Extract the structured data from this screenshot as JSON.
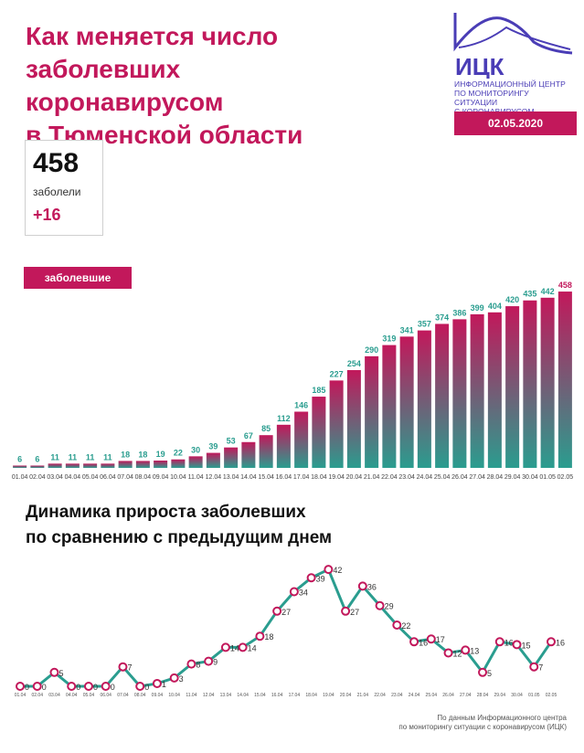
{
  "header": {
    "title_lines": [
      "Как меняется число",
      "заболевших коронавирусом",
      "в Тюменской области"
    ]
  },
  "logo": {
    "brand": "ИЦК",
    "subtitle_lines": [
      "Информационный центр",
      "по мониторингу ситуации",
      "с коронавирусом"
    ],
    "date": "02.05.2020",
    "colors": {
      "brand": "#4a3db6",
      "accent": "#c2185b"
    }
  },
  "stat": {
    "total": "458",
    "label": "заболели",
    "delta": "+16"
  },
  "bar_badge": "заболевшие",
  "line_section_title_lines": [
    "Динамика прироста заболевших",
    "по сравнению с предыдущим днем"
  ],
  "footer_lines": [
    "По данным Информационного центра",
    "по мониторингу ситуации с коронавирусом (ИЦК)"
  ],
  "chart_data": [
    {
      "type": "bar",
      "categories": [
        "01.04",
        "02.04",
        "03.04",
        "04.04",
        "05.04",
        "06.04",
        "07.04",
        "08.04",
        "09.04",
        "10.04",
        "11.04",
        "12.04",
        "13.04",
        "14.04",
        "15.04",
        "16.04",
        "17.04",
        "18.04",
        "19.04",
        "20.04",
        "21.04",
        "22.04",
        "23.04",
        "24.04",
        "25.04",
        "26.04",
        "27.04",
        "28.04",
        "29.04",
        "30.04",
        "01.05",
        "02.05"
      ],
      "values": [
        6,
        6,
        11,
        11,
        11,
        11,
        18,
        18,
        19,
        22,
        30,
        39,
        53,
        67,
        85,
        112,
        146,
        185,
        227,
        254,
        290,
        319,
        341,
        357,
        374,
        386,
        399,
        404,
        420,
        435,
        442,
        458
      ],
      "ylim": [
        0,
        470
      ],
      "colors": {
        "top": "#c2185b",
        "bottom": "#2a9d8f",
        "label": "#2a9d8f",
        "label_last": "#c2185b"
      }
    },
    {
      "type": "line",
      "x": [
        "01.04",
        "02.04",
        "03.04",
        "04.04",
        "05.04",
        "06.04",
        "07.04",
        "08.04",
        "09.04",
        "10.04",
        "11.04",
        "12.04",
        "13.04",
        "14.04",
        "15.04",
        "16.04",
        "17.04",
        "18.04",
        "19.04",
        "20.04",
        "21.04",
        "22.04",
        "23.04",
        "24.04",
        "25.04",
        "26.04",
        "27.04",
        "28.04",
        "29.04",
        "30.04",
        "01.05",
        "02.05"
      ],
      "values": [
        0,
        0,
        5,
        0,
        0,
        0,
        7,
        0,
        1,
        3,
        8,
        9,
        14,
        14,
        18,
        27,
        34,
        39,
        42,
        27,
        36,
        29,
        22,
        16,
        17,
        12,
        13,
        5,
        16,
        15,
        7,
        16
      ],
      "ylim": [
        0,
        45
      ],
      "colors": {
        "line": "#2a9d8f",
        "marker": "#c2185b"
      }
    }
  ]
}
